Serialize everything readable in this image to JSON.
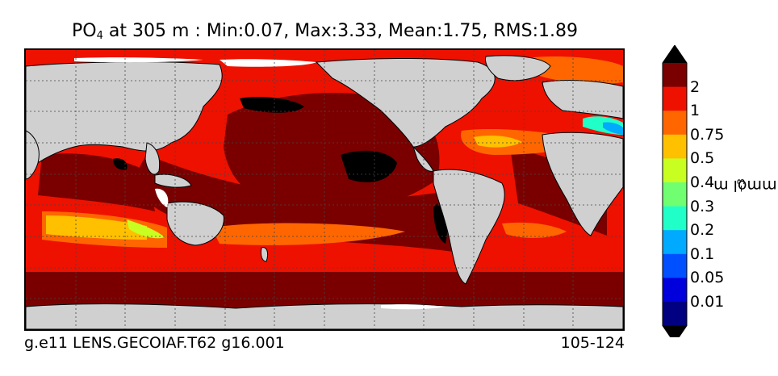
{
  "title": {
    "variable_main": "PO",
    "variable_sub": "4",
    "rest": " at 305 m : Min:0.07, Max:3.33, Mean:1.75, RMS:1.89"
  },
  "footer": {
    "left": "g.e11 LENS.GECOIAF.T62 g16.001",
    "right": "105-124"
  },
  "colorbar": {
    "unit_main": "mmol m",
    "unit_sup": "−3",
    "levels": [
      "2",
      "1",
      "0.75",
      "0.5",
      "0.4",
      "0.3",
      "0.2",
      "0.1",
      "0.05",
      "0.01"
    ],
    "colors_top_to_bottom": [
      "#7a0000",
      "#ee1100",
      "#ff6600",
      "#ffc000",
      "#c8ff20",
      "#70ff70",
      "#20ffc8",
      "#00aaff",
      "#0050ff",
      "#0000dd",
      "#000080"
    ],
    "over_color": "#000000",
    "under_color": "#000000"
  },
  "map": {
    "land_color": "#d0d0d0",
    "ice_color": "#ffffff",
    "gridlines": "dotted",
    "projection": "cylindrical global"
  }
}
